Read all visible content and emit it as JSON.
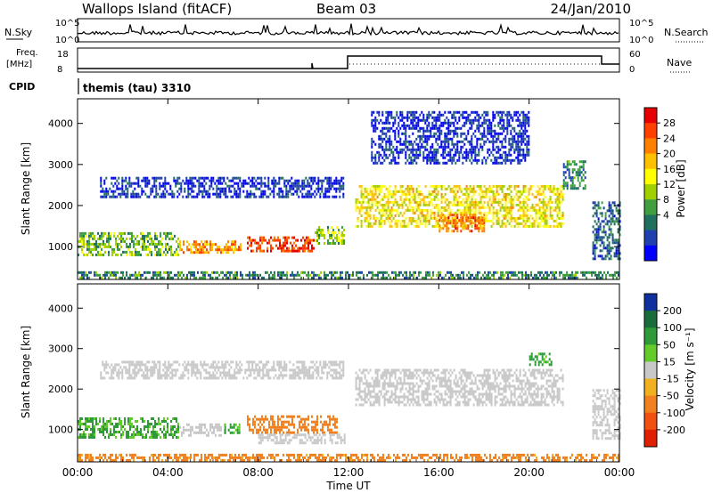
{
  "header": {
    "station": "Wallops Island (fitACF)",
    "beam": "Beam 03",
    "date": "24/Jan/2010"
  },
  "top_panels": {
    "nsky_label": "N.Sky",
    "nsearch_label": "N.Search",
    "nsky_ticks": [
      "10^5",
      "10^0"
    ],
    "freq_label_1": "Freq.",
    "freq_label_2": "[MHz]",
    "freq_ticks": [
      "18",
      "8"
    ],
    "nave_label": "Nave",
    "nave_ticks": [
      "60",
      "0"
    ],
    "cpid_label": "CPID",
    "cpid_value": "themis (tau) 3310"
  },
  "colorbars": {
    "power": {
      "label": "Power [dB]",
      "ticks": [
        "28",
        "24",
        "20",
        "16",
        "12",
        "8",
        "4"
      ],
      "colors": [
        "#e60000",
        "#ff4000",
        "#ff8000",
        "#ffc000",
        "#ffff00",
        "#a0d000",
        "#40a040",
        "#207060",
        "#2040b0",
        "#0000ff"
      ]
    },
    "velocity": {
      "label": "Velocity [m s⁻¹]",
      "ticks": [
        "200",
        "100",
        "50",
        "15",
        "-15",
        "-50",
        "-100",
        "-200"
      ],
      "colors": [
        "#1030a0",
        "#1a6d3a",
        "#2e9a3a",
        "#63cc2a",
        "#c8c8c8",
        "#f0b020",
        "#f08020",
        "#f05010",
        "#e02000"
      ]
    }
  },
  "chart_data": [
    {
      "type": "heatmap",
      "title": "",
      "xlabel": "",
      "ylabel": "Slant Range [km]",
      "x_ticks": [
        "00:00",
        "04:00",
        "08:00",
        "12:00",
        "16:00",
        "20:00",
        "00:00"
      ],
      "y_ticks": [
        1000,
        2000,
        3000,
        4000
      ],
      "xlim": [
        0,
        24
      ],
      "ylim": [
        200,
        4600
      ],
      "regions": [
        {
          "x": [
            0,
            4.5
          ],
          "y": [
            780,
            1350
          ],
          "value": 13
        },
        {
          "x": [
            4.5,
            7.2
          ],
          "y": [
            850,
            1150
          ],
          "value": 22
        },
        {
          "x": [
            7.5,
            10.5
          ],
          "y": [
            900,
            1250
          ],
          "value": 26
        },
        {
          "x": [
            10.5,
            11.8
          ],
          "y": [
            1100,
            1500
          ],
          "value": 14
        },
        {
          "x": [
            1,
            11.8
          ],
          "y": [
            2200,
            2700
          ],
          "value": 5
        },
        {
          "x": [
            12.3,
            21.5
          ],
          "y": [
            1500,
            2500
          ],
          "value": 18
        },
        {
          "x": [
            16,
            18
          ],
          "y": [
            1400,
            1800
          ],
          "value": 24
        },
        {
          "x": [
            21.5,
            22.5
          ],
          "y": [
            2400,
            3100
          ],
          "value": 10
        },
        {
          "x": [
            13,
            20
          ],
          "y": [
            3000,
            4300
          ],
          "value": 5
        },
        {
          "x": [
            22.8,
            24
          ],
          "y": [
            700,
            2100
          ],
          "value": 8
        },
        {
          "x": [
            0,
            24
          ],
          "y": [
            250,
            400
          ],
          "value": 10
        }
      ]
    },
    {
      "type": "heatmap",
      "title": "",
      "xlabel": "Time UT",
      "ylabel": "Slant Range [km]",
      "x_ticks": [
        "00:00",
        "04:00",
        "08:00",
        "12:00",
        "16:00",
        "20:00",
        "00:00"
      ],
      "y_ticks": [
        1000,
        2000,
        3000,
        4000
      ],
      "xlim": [
        0,
        24
      ],
      "ylim": [
        200,
        4600
      ],
      "regions": [
        {
          "x": [
            0,
            4.5
          ],
          "y": [
            800,
            1300
          ],
          "value": 35
        },
        {
          "x": [
            4.5,
            6.5
          ],
          "y": [
            850,
            1150
          ],
          "value": 0
        },
        {
          "x": [
            6.5,
            7.2
          ],
          "y": [
            900,
            1150
          ],
          "value": 35
        },
        {
          "x": [
            7.5,
            11.5
          ],
          "y": [
            900,
            1350
          ],
          "value": -60
        },
        {
          "x": [
            8,
            11.8
          ],
          "y": [
            700,
            900
          ],
          "value": 0
        },
        {
          "x": [
            1,
            11.8
          ],
          "y": [
            2300,
            2700
          ],
          "value": 0
        },
        {
          "x": [
            12.3,
            21.5
          ],
          "y": [
            1600,
            2500
          ],
          "value": 0
        },
        {
          "x": [
            20,
            21
          ],
          "y": [
            2600,
            2900
          ],
          "value": 40
        },
        {
          "x": [
            22.8,
            24
          ],
          "y": [
            800,
            2000
          ],
          "value": 0
        },
        {
          "x": [
            0,
            24
          ],
          "y": [
            250,
            400
          ],
          "value": -40
        }
      ]
    }
  ]
}
